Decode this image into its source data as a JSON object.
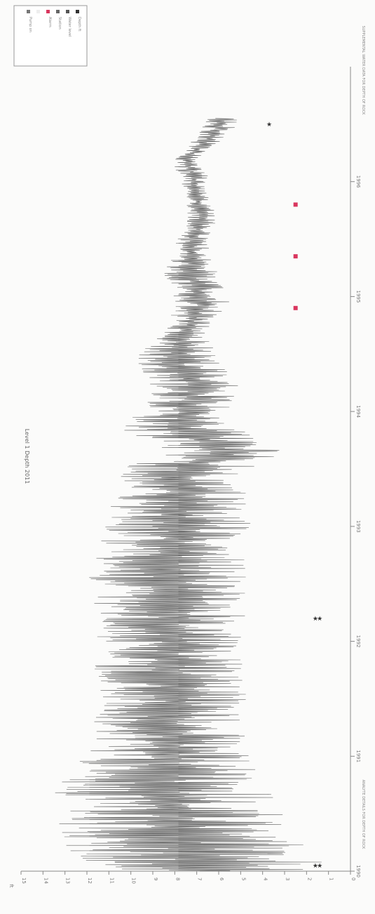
{
  "chart_data": {
    "type": "line",
    "title": "Level 1 Depth 2011",
    "orientation": "rotated-90-clockwise",
    "ylabel": "ft",
    "yticks": [
      "0",
      "1",
      "2",
      "3",
      "4",
      "5",
      "6",
      "7",
      "8",
      "9",
      "10",
      "11",
      "12",
      "13",
      "14",
      "15"
    ],
    "ylim": [
      0,
      15
    ],
    "xticks": [
      "1990",
      "1991",
      "1992",
      "1993",
      "1994",
      "1995",
      "1996"
    ],
    "xlim": [
      1990,
      1997
    ],
    "grid": false,
    "legend_placement": "top-left",
    "legend": [
      {
        "label": "Depth ft",
        "color": "#333333"
      },
      {
        "label": "Water level",
        "color": "#555555"
      },
      {
        "label": "Station",
        "color": "#666666"
      },
      {
        "label": "Alarm",
        "color": "#d9365e"
      },
      {
        "label": "",
        "color": "#eeeeee"
      },
      {
        "label": "Pump on",
        "color": "#777777"
      }
    ],
    "series": [
      {
        "color": "#4a4a4a",
        "envelope": [
          {
            "x": 1990.0,
            "low": 1.2,
            "high": 11.5
          },
          {
            "x": 1990.1,
            "low": 1.0,
            "high": 12.5
          },
          {
            "x": 1990.25,
            "low": 2.0,
            "high": 13.6
          },
          {
            "x": 1990.45,
            "low": 3.0,
            "high": 13.2
          },
          {
            "x": 1990.7,
            "low": 3.5,
            "high": 13.5
          },
          {
            "x": 1990.95,
            "low": 4.5,
            "high": 12.5
          },
          {
            "x": 1991.1,
            "low": 4.8,
            "high": 11.5
          },
          {
            "x": 1991.3,
            "low": 4.8,
            "high": 11.8
          },
          {
            "x": 1991.5,
            "low": 4.7,
            "high": 11.4
          },
          {
            "x": 1991.75,
            "low": 4.8,
            "high": 11.8
          },
          {
            "x": 1992.0,
            "low": 5.0,
            "high": 11.5
          },
          {
            "x": 1992.25,
            "low": 4.7,
            "high": 11.8
          },
          {
            "x": 1992.5,
            "low": 4.6,
            "high": 12.0
          },
          {
            "x": 1992.75,
            "low": 4.8,
            "high": 11.6
          },
          {
            "x": 1993.0,
            "low": 4.5,
            "high": 11.2
          },
          {
            "x": 1993.25,
            "low": 4.8,
            "high": 10.8
          },
          {
            "x": 1993.5,
            "low": 4.6,
            "high": 10.6
          },
          {
            "x": 1993.65,
            "low": 3.0,
            "high": 8.5
          },
          {
            "x": 1993.85,
            "low": 5.0,
            "high": 10.5
          },
          {
            "x": 1994.05,
            "low": 5.5,
            "high": 9.5
          },
          {
            "x": 1994.2,
            "low": 5.0,
            "high": 9.0
          },
          {
            "x": 1994.45,
            "low": 6.0,
            "high": 10.0
          },
          {
            "x": 1994.7,
            "low": 6.5,
            "high": 8.5
          },
          {
            "x": 1994.95,
            "low": 5.5,
            "high": 8.0
          },
          {
            "x": 1995.2,
            "low": 6.0,
            "high": 8.5
          },
          {
            "x": 1995.45,
            "low": 6.5,
            "high": 8.0
          },
          {
            "x": 1995.65,
            "low": 6.0,
            "high": 7.5
          },
          {
            "x": 1995.9,
            "low": 6.5,
            "high": 7.5
          },
          {
            "x": 1996.1,
            "low": 6.5,
            "high": 8.0
          },
          {
            "x": 1996.2,
            "low": 7.0,
            "high": 8.0
          },
          {
            "x": 1996.4,
            "low": 5.5,
            "high": 7.0
          },
          {
            "x": 1996.55,
            "low": 5.0,
            "high": 6.5
          }
        ]
      }
    ],
    "markers": [
      {
        "x": 1990.05,
        "y": 1.4,
        "symbol": "star",
        "color": "#333333"
      },
      {
        "x": 1990.05,
        "y": 1.6,
        "symbol": "star",
        "color": "#333333"
      },
      {
        "x": 1992.2,
        "y": 1.4,
        "symbol": "star",
        "color": "#333333"
      },
      {
        "x": 1992.2,
        "y": 1.6,
        "symbol": "star",
        "color": "#333333"
      },
      {
        "x": 1994.9,
        "y": 2.5,
        "symbol": "square",
        "color": "#d9365e"
      },
      {
        "x": 1995.35,
        "y": 2.5,
        "symbol": "square",
        "color": "#d9365e"
      },
      {
        "x": 1995.8,
        "y": 2.5,
        "symbol": "square",
        "color": "#d9365e"
      },
      {
        "x": 1996.5,
        "y": 3.7,
        "symbol": "star",
        "color": "#333333"
      }
    ]
  },
  "bottom_caption": "ANALYTE DETAILS FOR DEPTH OF ROCK",
  "top_caption": "SUPPLEMENTAL WATER DATA FOR DEPTH OF ROCK"
}
